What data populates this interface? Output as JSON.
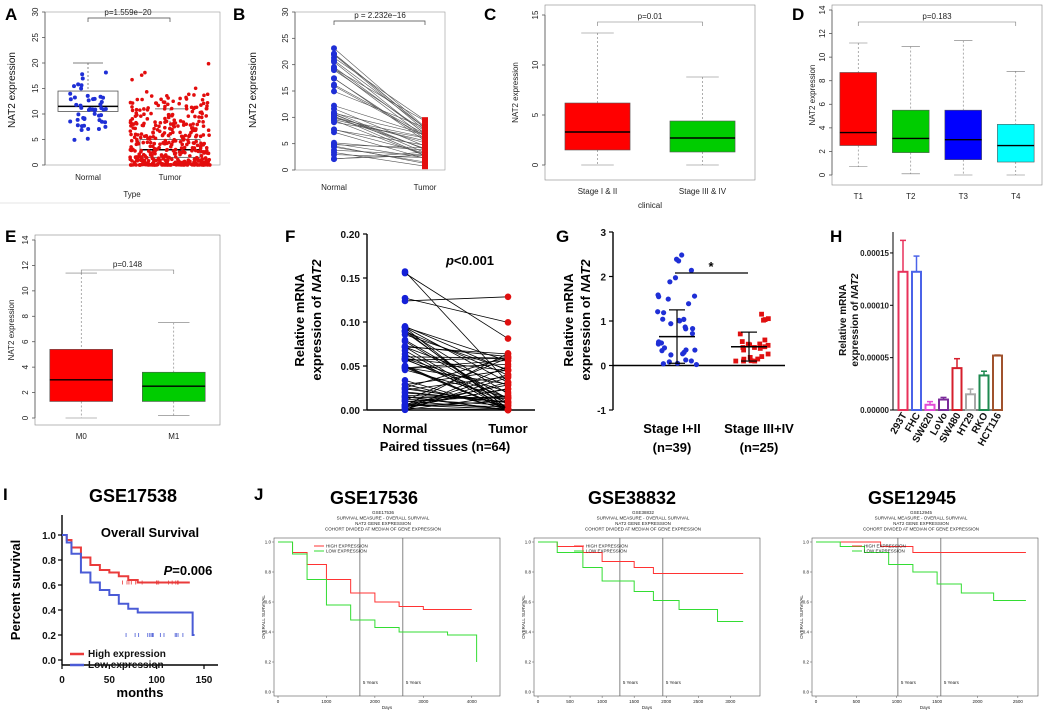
{
  "panels": {
    "A": {
      "label": "A",
      "type": "box+scatter",
      "ylabel": "NAT2 expression",
      "xlabel": "Type",
      "categories": [
        "Normal",
        "Tumor"
      ],
      "yticks": [
        "0",
        "5",
        "10",
        "15",
        "20",
        "25",
        "30"
      ],
      "pvalue": "p=1.559e−20",
      "chart_data": {
        "type": "scatter",
        "categories": [
          "Normal",
          "Tumor"
        ],
        "ylim": [
          0,
          30
        ],
        "series": [
          {
            "name": "Normal",
            "median": 11.5,
            "q1": 10.5,
            "q3": 14.5,
            "whisker_low": 4,
            "whisker_high": 20
          },
          {
            "name": "Tumor",
            "median": 3,
            "q1": 1.5,
            "q3": 5,
            "whisker_low": 0,
            "whisker_high": 11
          }
        ]
      }
    },
    "B": {
      "label": "B",
      "type": "paired",
      "ylabel": "NAT2 expression",
      "categories": [
        "Normal",
        "Tumor"
      ],
      "yticks": [
        "0",
        "5",
        "10",
        "15",
        "20",
        "25",
        "30"
      ],
      "pvalue": "p = 2.232e−16",
      "chart_data": {
        "type": "line",
        "categories": [
          "Normal",
          "Tumor"
        ],
        "ylim": [
          0,
          30
        ]
      }
    },
    "C": {
      "label": "C",
      "type": "box",
      "ylabel": "NAT2 expression",
      "xlabel": "clinical",
      "categories": [
        "Stage I & II",
        "Stage III & IV"
      ],
      "yticks": [
        "0",
        "5",
        "10",
        "15"
      ],
      "pvalue": "p=0.01",
      "chart_data": {
        "type": "bar",
        "categories": [
          "Stage I & II",
          "Stage III & IV"
        ],
        "ylim": [
          0,
          15
        ],
        "series": [
          {
            "name": "Stage I & II",
            "median": 3.3,
            "q1": 1.5,
            "q3": 6.2,
            "whisker_low": 0,
            "whisker_high": 13.2
          },
          {
            "name": "Stage III & IV",
            "median": 2.7,
            "q1": 1.3,
            "q3": 4.4,
            "whisker_low": 0,
            "whisker_high": 8.8
          }
        ]
      }
    },
    "D": {
      "label": "D",
      "type": "box",
      "ylabel": "NAT2 expression",
      "categories": [
        "T1",
        "T2",
        "T3",
        "T4"
      ],
      "yticks": [
        "0",
        "2",
        "4",
        "6",
        "8",
        "10",
        "12",
        "14"
      ],
      "pvalue": "p=0.183",
      "chart_data": {
        "type": "bar",
        "categories": [
          "T1",
          "T2",
          "T3",
          "T4"
        ],
        "ylim": [
          0,
          14
        ],
        "series": [
          {
            "name": "T1",
            "median": 3.6,
            "q1": 2.5,
            "q3": 8.7,
            "whisker_low": 0.7,
            "whisker_high": 11.2
          },
          {
            "name": "T2",
            "median": 3.1,
            "q1": 1.9,
            "q3": 5.5,
            "whisker_low": 0.1,
            "whisker_high": 10.9
          },
          {
            "name": "T3",
            "median": 3.0,
            "q1": 1.3,
            "q3": 5.5,
            "whisker_low": 0,
            "whisker_high": 11.4
          },
          {
            "name": "T4",
            "median": 2.5,
            "q1": 1.1,
            "q3": 4.3,
            "whisker_low": 0,
            "whisker_high": 8.8
          }
        ]
      }
    },
    "E": {
      "label": "E",
      "type": "box",
      "ylabel": "NAT2 expression",
      "categories": [
        "M0",
        "M1"
      ],
      "yticks": [
        "0",
        "2",
        "4",
        "6",
        "8",
        "10",
        "12",
        "14"
      ],
      "pvalue": "p=0.148",
      "chart_data": {
        "type": "bar",
        "categories": [
          "M0",
          "M1"
        ],
        "ylim": [
          0,
          14
        ],
        "series": [
          {
            "name": "M0",
            "median": 3.0,
            "q1": 1.3,
            "q3": 5.4,
            "whisker_low": 0,
            "whisker_high": 11.4
          },
          {
            "name": "M1",
            "median": 2.5,
            "q1": 1.3,
            "q3": 3.6,
            "whisker_low": 0.2,
            "whisker_high": 7.5
          }
        ]
      }
    },
    "F": {
      "label": "F",
      "type": "paired",
      "ylabel_1": "Relative mRNA",
      "ylabel_2": "expression of ",
      "ylabel_gene": "NAT2",
      "categories": [
        "Normal",
        "Tumor"
      ],
      "xlabel": "Paired tissues (n=64)",
      "yticks": [
        "0.00",
        "0.05",
        "0.10",
        "0.15",
        "0.20"
      ],
      "pvalue_prefix": "p",
      "pvalue_rest": "<0.001",
      "chart_data": {
        "type": "line",
        "categories": [
          "Normal",
          "Tumor"
        ],
        "ylim": [
          0,
          0.2
        ]
      }
    },
    "G": {
      "label": "G",
      "type": "scatter",
      "ylabel_1": "Relative mRNA",
      "ylabel_2": "expression of ",
      "ylabel_gene": "NAT2",
      "categories": [
        "Stage I+II",
        "Stage III+IV"
      ],
      "counts": [
        "(n=39)",
        "(n=25)"
      ],
      "yticks": [
        "-1",
        "0",
        "1",
        "2",
        "3"
      ],
      "sig": "*",
      "chart_data": {
        "type": "scatter",
        "categories": [
          "Stage I+II",
          "Stage III+IV"
        ],
        "ylim": [
          -1,
          3
        ],
        "series": [
          {
            "name": "Stage I+II",
            "mean": 0.65,
            "sd_low": 0.05,
            "sd_high": 1.25
          },
          {
            "name": "Stage III+IV",
            "mean": 0.42,
            "sd_low": 0.1,
            "sd_high": 0.75
          }
        ]
      }
    },
    "H": {
      "label": "H",
      "type": "bar",
      "ylabel_1": "Relative mRNA",
      "ylabel_2": "expression of ",
      "ylabel_gene": "NAT2",
      "yticks": [
        "0.00000",
        "0.00005",
        "0.00010",
        "0.00015"
      ],
      "chart_data": {
        "type": "bar",
        "categories": [
          "293T",
          "FHC",
          "SW620",
          "LoVo",
          "SW480",
          "HT29",
          "RKO",
          "HCT116"
        ],
        "values": [
          0.000132,
          0.000132,
          5e-06,
          1e-05,
          4e-05,
          1.5e-05,
          3.3e-05,
          5.2e-05
        ],
        "errors": [
          3e-05,
          1.5e-05,
          3e-06,
          2e-06,
          9e-06,
          5e-06,
          4e-06,
          5e-07
        ],
        "colors": [
          "#e8315a",
          "#4b63e8",
          "#e44bd6",
          "#7a2a9a",
          "#d61f2c",
          "#a8a8a8",
          "#1f8a50",
          "#a0522d"
        ],
        "ylim": [
          0,
          0.00017
        ]
      }
    },
    "I": {
      "label": "I",
      "title": "GSE17538",
      "subtitle": "Overall Survival",
      "ylabel": "Percent survival",
      "xlabel": "months",
      "pvalue_prefix": "P",
      "pvalue_rest": "=0.006",
      "xticks": [
        "0",
        "50",
        "100",
        "150"
      ],
      "yticks": [
        "0.0",
        "0.2",
        "0.4",
        "0.6",
        "0.8",
        "1.0"
      ],
      "legend": [
        "High expression",
        "Low expression"
      ],
      "chart_data": {
        "type": "line",
        "xlim": [
          0,
          150
        ],
        "ylim": [
          0,
          1
        ],
        "series": [
          {
            "name": "High expression",
            "x": [
              0,
              5,
              10,
              20,
              30,
              40,
              50,
              60,
              70,
              80,
              90,
              100,
              110,
              120,
              130,
              135
            ],
            "y": [
              1,
              0.96,
              0.9,
              0.82,
              0.76,
              0.72,
              0.7,
              0.67,
              0.64,
              0.62,
              0.62,
              0.62,
              0.62,
              0.62,
              0.62,
              0.62
            ]
          },
          {
            "name": "Low expression",
            "x": [
              0,
              5,
              10,
              20,
              30,
              40,
              50,
              60,
              70,
              80,
              90,
              100,
              110,
              120,
              130,
              138,
              140
            ],
            "y": [
              1,
              0.94,
              0.85,
              0.7,
              0.62,
              0.56,
              0.52,
              0.45,
              0.41,
              0.38,
              0.38,
              0.38,
              0.38,
              0.38,
              0.38,
              0.2,
              0.2
            ]
          }
        ]
      }
    },
    "J": {
      "label": "J",
      "sub": [
        {
          "title": "GSE17536",
          "header": [
            "GSE17536",
            "SURVIVAL MEASURE - OVERALL SURVIVAL",
            "NAT2  GENE EXPRESSION",
            "COHORT DIVIDED AT MEDIAN OF GENE EXPRESSION"
          ],
          "legend": [
            "HIGH EXPRESSION",
            "LOW EXPRESSION"
          ],
          "ylabel": "OVERALL SURVIVAL",
          "xlabel": "Days",
          "xticks": [
            "0",
            "1000",
            "2000",
            "3000",
            "4000"
          ],
          "yticks": [
            "0.0",
            "0.2",
            "0.4",
            "0.6",
            "0.8",
            "1.0"
          ],
          "marks": [
            "5 Years",
            "5 Years"
          ],
          "chart_data": {
            "type": "line",
            "xlim": [
              0,
              4500
            ],
            "ylim": [
              0,
              1
            ],
            "series": [
              {
                "name": "HIGH EXPRESSION",
                "x": [
                  0,
                  300,
                  600,
                  1000,
                  1500,
                  2000,
                  2500,
                  3000,
                  3500,
                  4000
                ],
                "y": [
                  1,
                  0.93,
                  0.85,
                  0.75,
                  0.66,
                  0.6,
                  0.57,
                  0.55,
                  0.55,
                  0.55
                ]
              },
              {
                "name": "LOW EXPRESSION",
                "x": [
                  0,
                  300,
                  600,
                  1000,
                  1500,
                  2000,
                  2500,
                  3000,
                  3500,
                  4000,
                  4100
                ],
                "y": [
                  1,
                  0.92,
                  0.75,
                  0.58,
                  0.48,
                  0.43,
                  0.4,
                  0.4,
                  0.38,
                  0.38,
                  0.2
                ]
              }
            ]
          }
        },
        {
          "title": "GSE38832",
          "header": [
            "GSE38832",
            "SURVIVAL MEASURE - OVERALL SURVIVAL",
            "NAT2  GENE EXPRESSION",
            "COHORT DIVIDED AT MEDIAN OF GENE EXPRESSION"
          ],
          "legend": [
            "HIGH EXPRESSION",
            "LOW EXPRESSION"
          ],
          "ylabel": "OVERALL SURVIVAL",
          "xlabel": "Days",
          "xticks": [
            "0",
            "500",
            "1000",
            "1500",
            "2000",
            "2500",
            "3000"
          ],
          "yticks": [
            "0.0",
            "0.2",
            "0.4",
            "0.6",
            "0.8",
            "1.0"
          ],
          "marks": [
            "5 Years",
            "5 Years"
          ],
          "chart_data": {
            "type": "line",
            "xlim": [
              0,
              3400
            ],
            "ylim": [
              0,
              1
            ],
            "series": [
              {
                "name": "HIGH EXPRESSION",
                "x": [
                  0,
                  300,
                  700,
                  1000,
                  1500,
                  1800,
                  2200,
                  2800,
                  3200
                ],
                "y": [
                  1,
                  0.97,
                  0.93,
                  0.87,
                  0.83,
                  0.79,
                  0.79,
                  0.79,
                  0.79
                ]
              },
              {
                "name": "LOW EXPRESSION",
                "x": [
                  0,
                  300,
                  700,
                  1000,
                  1500,
                  1800,
                  2200,
                  2800,
                  3200
                ],
                "y": [
                  1,
                  0.93,
                  0.83,
                  0.74,
                  0.67,
                  0.61,
                  0.55,
                  0.47,
                  0.47
                ]
              }
            ]
          }
        },
        {
          "title": "GSE12945",
          "header": [
            "GSE12945",
            "SURVIVAL MEASURE - OVERALL SURVIVAL",
            "NAT2  GENE EXPRESSION",
            "COHORT DIVIDED AT MEDIAN OF GENE EXPRESSION"
          ],
          "legend": [
            "HIGH EXPRESSION",
            "LOW EXPRESSION"
          ],
          "ylabel": "OVERALL SURVIVAL",
          "xlabel": "Days",
          "xticks": [
            "0",
            "500",
            "1000",
            "1500",
            "2000",
            "2500"
          ],
          "yticks": [
            "0.0",
            "0.2",
            "0.4",
            "0.6",
            "0.8",
            "1.0"
          ],
          "marks": [
            "5 Years",
            "5 Years"
          ],
          "chart_data": {
            "type": "line",
            "xlim": [
              0,
              2700
            ],
            "ylim": [
              0,
              1
            ],
            "series": [
              {
                "name": "HIGH EXPRESSION",
                "x": [
                  0,
                  400,
                  800,
                  1200,
                  1600,
                  2000,
                  2400,
                  2600
                ],
                "y": [
                  1,
                  1,
                  0.97,
                  0.93,
                  0.93,
                  0.93,
                  0.93,
                  0.93
                ]
              },
              {
                "name": "LOW EXPRESSION",
                "x": [
                  0,
                  300,
                  600,
                  900,
                  1200,
                  1500,
                  1800,
                  2200,
                  2600
                ],
                "y": [
                  1,
                  0.97,
                  0.93,
                  0.85,
                  0.8,
                  0.72,
                  0.66,
                  0.61,
                  0.61
                ]
              }
            ]
          }
        }
      ]
    }
  }
}
